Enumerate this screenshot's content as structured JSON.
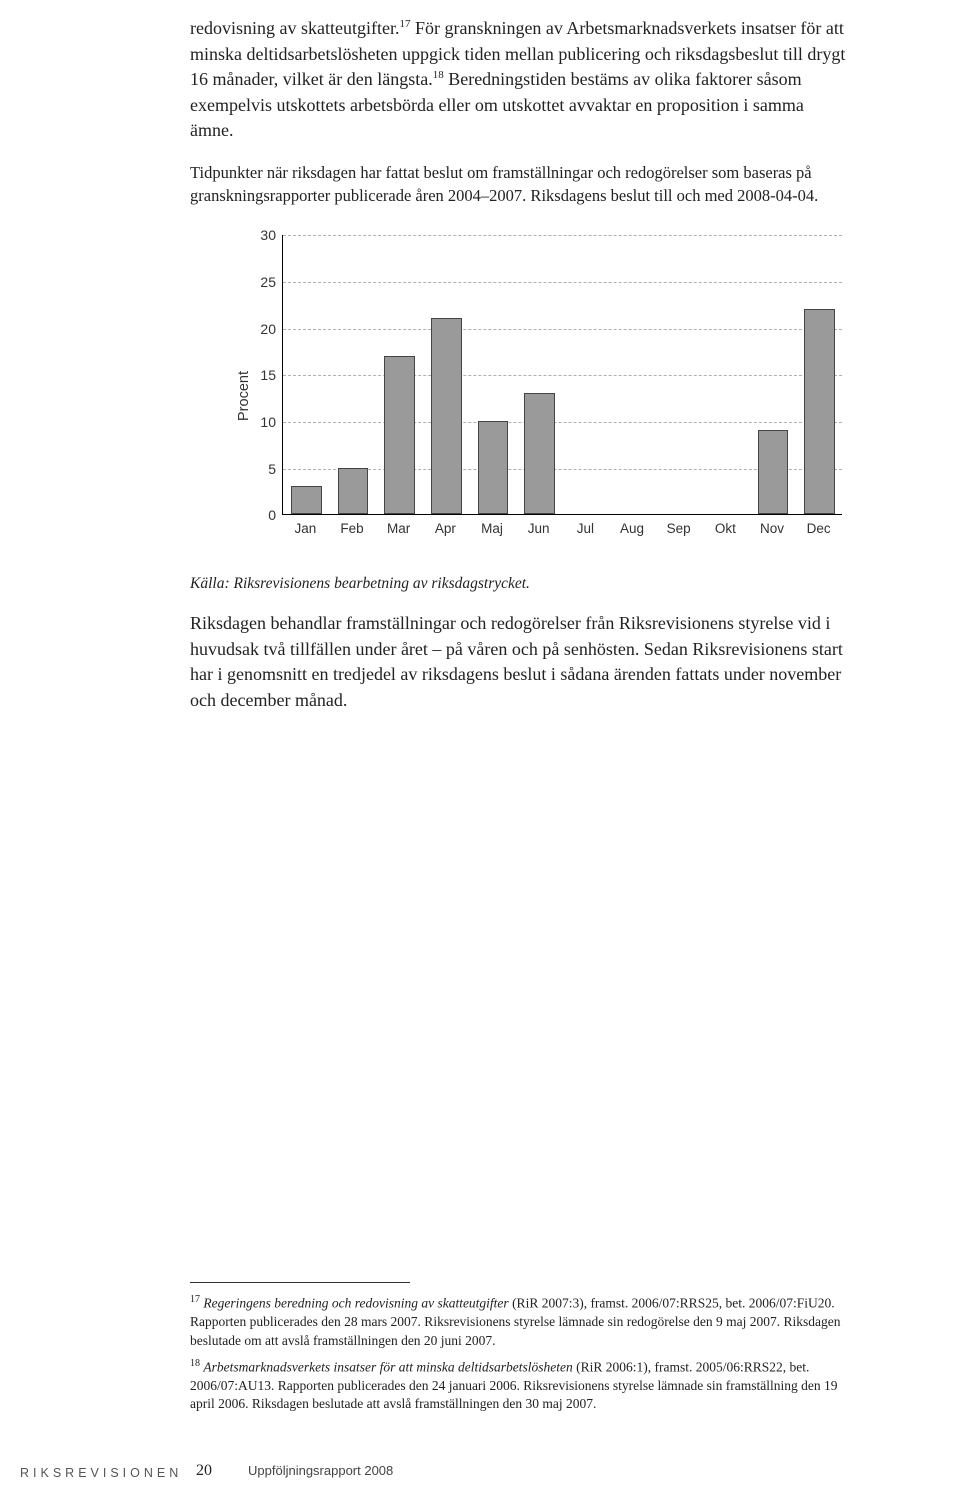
{
  "body": {
    "para1_a": "redovisning av skatteutgifter.",
    "sup17": "17",
    "para1_b": " För granskningen av Arbetsmarknadsverkets insatser för att minska deltidsarbetslösheten uppgick tiden mellan publicering och riksdagsbeslut till drygt 16 månader, vilket är den längsta.",
    "sup18": "18",
    "para1_c": " Beredningstiden bestäms av olika faktorer såsom exempelvis utskottets arbetsbörda eller om utskottet avvaktar en proposition i samma ämne.",
    "caption": "Tidpunkter när riksdagen har fattat beslut om framställningar och redogörelser som baseras på granskningsrapporter publicerade åren 2004–2007. Riksdagens beslut till och med 2008-04-04.",
    "source": "Källa: Riksrevisionens bearbetning av riksdagstrycket.",
    "para2": "Riksdagen behandlar framställningar och redogörelser från Riksrevisionens styrelse vid i huvudsak två tillfällen under året – på våren och på senhösten. Sedan Riksrevisionens start har i genomsnitt en tredjedel av riksdagens beslut i sådana ärenden fattats under november och december månad."
  },
  "chart": {
    "type": "bar",
    "ylabel": "Procent",
    "ylim_max": 30,
    "ytick_step": 5,
    "bar_color": "#9a9a9a",
    "bar_border": "#444444",
    "grid_color": "#b0b0b0",
    "categories": [
      "Jan",
      "Feb",
      "Mar",
      "Apr",
      "Maj",
      "Jun",
      "Jul",
      "Aug",
      "Sep",
      "Okt",
      "Nov",
      "Dec"
    ],
    "values": [
      3,
      5,
      17,
      21,
      10,
      13,
      0,
      0,
      0,
      0,
      9,
      22
    ],
    "yticks": [
      0,
      5,
      10,
      15,
      20,
      25,
      30
    ]
  },
  "footnotes": {
    "fn17_sup": "17",
    "fn17_i": "Regeringens beredning och redovisning av skatteutgifter",
    "fn17_rest": " (RiR 2007:3), framst. 2006/07:RRS25, bet. 2006/07:FiU20. Rapporten publicerades den 28 mars 2007. Riksrevisionens styrelse lämnade sin redogörelse den 9 maj 2007. Riksdagen beslutade om att avslå framställningen den 20 juni 2007.",
    "fn18_sup": "18",
    "fn18_i": "Arbetsmarknadsverkets insatser för att minska deltidsarbetslösheten",
    "fn18_rest": " (RiR 2006:1), framst. 2005/06:RRS22, bet. 2006/07:AU13. Rapporten publicerades den 24 januari 2006. Riksrevisionens styrelse lämnade sin framställning den 19 april 2006. Riksdagen beslutade att avslå framställningen den 30 maj 2007."
  },
  "footer": {
    "brand": "RIKSREVISIONEN",
    "pagenum": "20",
    "doctitle": "Uppföljningsrapport 2008"
  }
}
